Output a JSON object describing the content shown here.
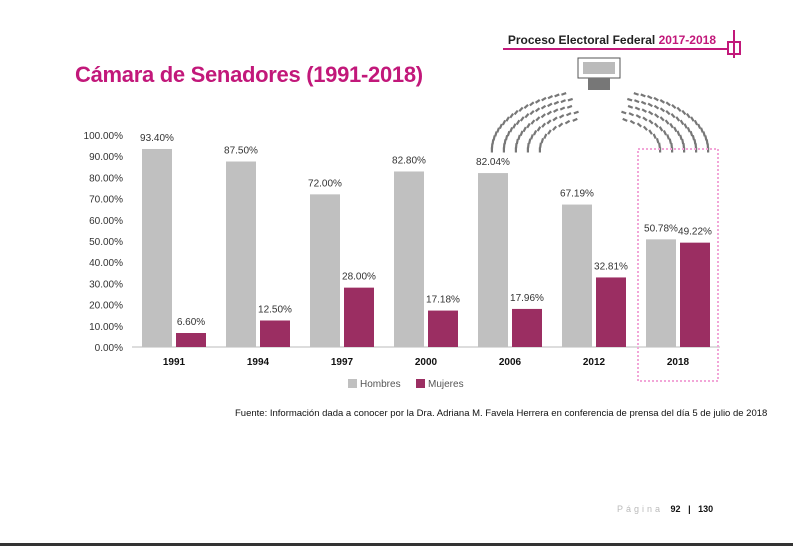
{
  "header": {
    "title": "Proceso Electoral Federal",
    "years": "2017-2018"
  },
  "page_title": "Cámara de Senadores (1991-2018)",
  "chart_data": {
    "type": "bar",
    "categories": [
      "1991",
      "1994",
      "1997",
      "2000",
      "2006",
      "2012",
      "2018"
    ],
    "series": [
      {
        "name": "Hombres",
        "values": [
          93.4,
          87.5,
          72.0,
          82.8,
          82.04,
          67.19,
          50.78
        ],
        "labels": [
          "93.40%",
          "87.50%",
          "72.00%",
          "82.80%",
          "82.04%",
          "67.19%",
          "50.78%"
        ],
        "color": "#c0c0c0"
      },
      {
        "name": "Mujeres",
        "values": [
          6.6,
          12.5,
          28.0,
          17.18,
          17.96,
          32.81,
          49.22
        ],
        "labels": [
          "6.60%",
          "12.50%",
          "28.00%",
          "17.18%",
          "17.96%",
          "32.81%",
          "49.22%"
        ],
        "color": "#9b2e62"
      }
    ],
    "yticks": [
      "0.00%",
      "10.00%",
      "20.00%",
      "30.00%",
      "40.00%",
      "50.00%",
      "60.00%",
      "70.00%",
      "80.00%",
      "90.00%",
      "100.00%"
    ],
    "ylim": [
      0,
      100
    ],
    "grid": false,
    "legend_position": "bottom",
    "highlight_category": "2018",
    "highlight_color": "#f2a6d8"
  },
  "source_note": "Fuente: Información dada a conocer por la Dra. Adriana M. Favela Herrera en conferencia de prensa del día 5 de julio de 2018",
  "footer": {
    "page_word": "Página",
    "page_number": "92",
    "separator": "|",
    "total_pages": "130"
  }
}
